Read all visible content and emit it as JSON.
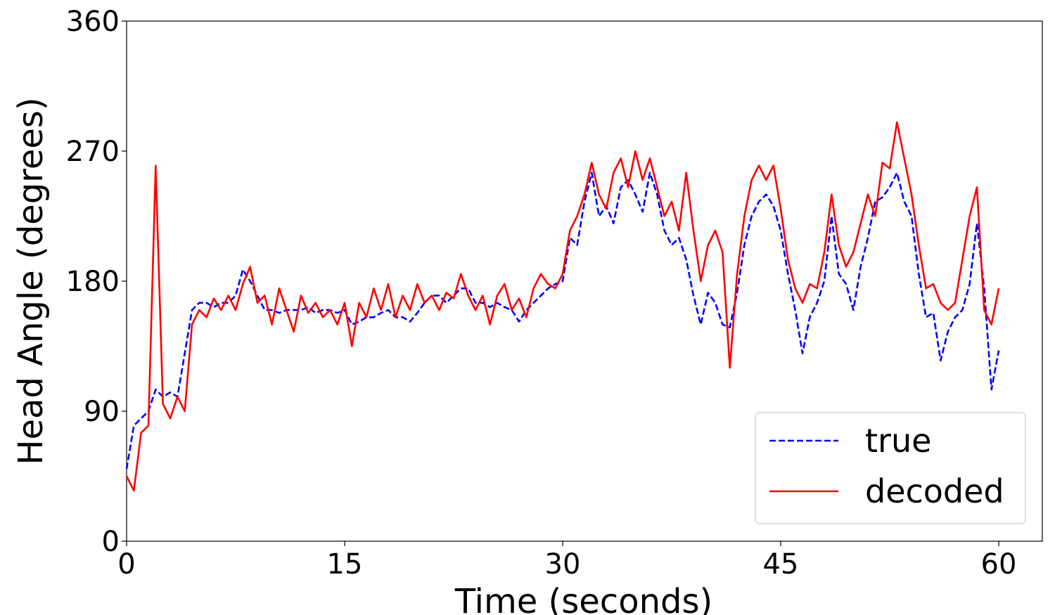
{
  "chart_data": {
    "type": "line",
    "xlabel": "Time (seconds)",
    "ylabel": "Head Angle (degrees)",
    "x": [
      0,
      0.5,
      1,
      1.5,
      2,
      2.5,
      3,
      3.5,
      4,
      4.5,
      5,
      5.5,
      6,
      6.5,
      7,
      7.5,
      8,
      8.5,
      9,
      9.5,
      10,
      10.5,
      11,
      11.5,
      12,
      12.5,
      13,
      13.5,
      14,
      14.5,
      15,
      15.5,
      16,
      16.5,
      17,
      17.5,
      18,
      18.5,
      19,
      19.5,
      20,
      20.5,
      21,
      21.5,
      22,
      22.5,
      23,
      23.5,
      24,
      24.5,
      25,
      25.5,
      26,
      26.5,
      27,
      27.5,
      28,
      28.5,
      29,
      29.5,
      30,
      30.5,
      31,
      31.5,
      32,
      32.5,
      33,
      33.5,
      34,
      34.5,
      35,
      35.5,
      36,
      36.5,
      37,
      37.5,
      38,
      38.5,
      39,
      39.5,
      40,
      40.5,
      41,
      41.5,
      42,
      42.5,
      43,
      43.5,
      44,
      44.5,
      45,
      45.5,
      46,
      46.5,
      47,
      47.5,
      48,
      48.5,
      49,
      49.5,
      50,
      50.5,
      51,
      51.5,
      52,
      52.5,
      53,
      53.5,
      54,
      54.5,
      55,
      55.5,
      56,
      56.5,
      57,
      57.5,
      58,
      58.5,
      59,
      59.5,
      60
    ],
    "series": [
      {
        "name": "true",
        "color": "#0000ff",
        "linestyle": "dashed",
        "values": [
          50,
          80,
          85,
          90,
          105,
          100,
          103,
          100,
          130,
          160,
          165,
          165,
          162,
          165,
          165,
          170,
          188,
          180,
          170,
          160,
          160,
          158,
          160,
          160,
          160,
          162,
          158,
          160,
          160,
          158,
          160,
          150,
          152,
          155,
          155,
          158,
          160,
          155,
          155,
          152,
          158,
          165,
          170,
          170,
          165,
          170,
          175,
          175,
          165,
          165,
          162,
          165,
          162,
          160,
          152,
          160,
          165,
          170,
          175,
          178,
          180,
          210,
          205,
          235,
          255,
          225,
          232,
          220,
          245,
          250,
          240,
          228,
          255,
          240,
          215,
          205,
          210,
          195,
          170,
          150,
          172,
          165,
          150,
          148,
          172,
          205,
          225,
          235,
          240,
          232,
          215,
          185,
          160,
          130,
          155,
          165,
          180,
          225,
          185,
          178,
          160,
          190,
          210,
          235,
          238,
          245,
          255,
          235,
          225,
          185,
          155,
          158,
          125,
          145,
          155,
          160,
          178,
          220,
          175,
          105,
          132
        ]
      },
      {
        "name": "decoded",
        "color": "#ff0000",
        "linestyle": "solid",
        "values": [
          45,
          35,
          75,
          80,
          260,
          95,
          85,
          100,
          90,
          150,
          160,
          155,
          168,
          160,
          170,
          160,
          178,
          190,
          165,
          170,
          150,
          175,
          160,
          145,
          170,
          158,
          165,
          155,
          160,
          150,
          165,
          135,
          165,
          155,
          175,
          160,
          178,
          155,
          170,
          160,
          178,
          165,
          170,
          160,
          172,
          168,
          185,
          170,
          160,
          170,
          150,
          170,
          178,
          160,
          168,
          155,
          175,
          185,
          178,
          175,
          185,
          215,
          225,
          240,
          262,
          240,
          230,
          255,
          265,
          245,
          270,
          250,
          265,
          245,
          225,
          235,
          215,
          255,
          215,
          180,
          205,
          215,
          200,
          120,
          185,
          225,
          250,
          260,
          250,
          260,
          230,
          195,
          175,
          165,
          178,
          175,
          200,
          240,
          205,
          190,
          200,
          220,
          240,
          225,
          262,
          258,
          290,
          265,
          240,
          205,
          175,
          178,
          165,
          160,
          165,
          195,
          225,
          245,
          160,
          150,
          175
        ]
      }
    ],
    "xlim": [
      0,
      63
    ],
    "xticks": [
      0,
      15,
      30,
      45,
      60
    ],
    "ylim": [
      0,
      360
    ],
    "yticks": [
      0,
      90,
      180,
      270,
      360
    ],
    "legend": "lower right"
  }
}
